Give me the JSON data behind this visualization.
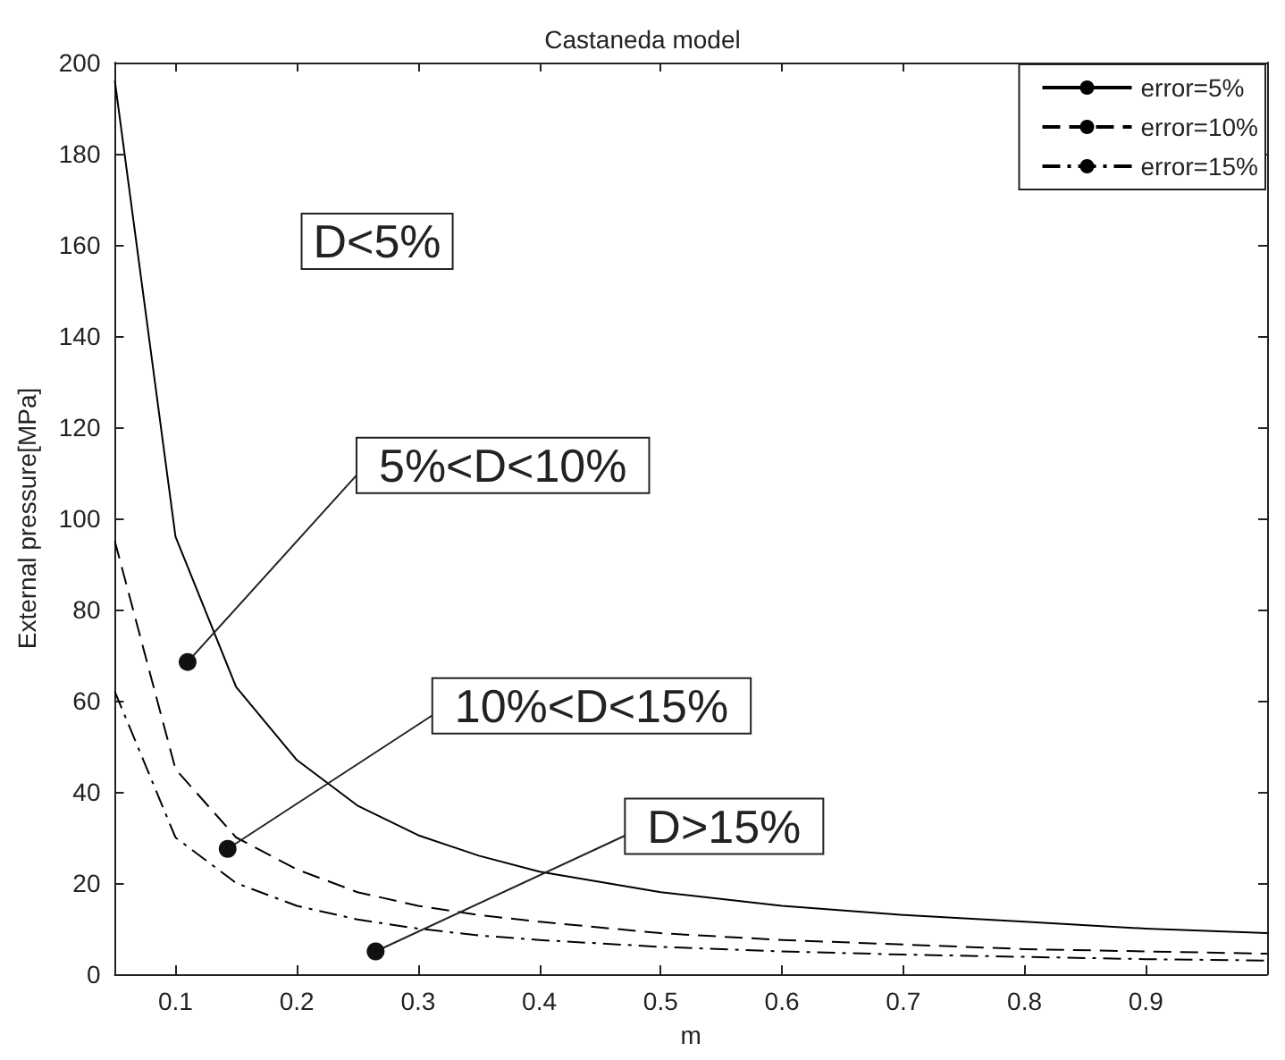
{
  "chart_data": {
    "type": "line",
    "title": "Castaneda model",
    "xlabel": "m",
    "ylabel": "External pressure[MPa]",
    "x": [
      0.05,
      0.1,
      0.15,
      0.2,
      0.25,
      0.3,
      0.35,
      0.4,
      0.5,
      0.6,
      0.7,
      0.8,
      0.9,
      1.0
    ],
    "series": [
      {
        "name": "error=5%",
        "color": "#000000",
        "line_style": "solid",
        "values": [
          196,
          96,
          63,
          47,
          37,
          30.5,
          26,
          22.5,
          18,
          15,
          13,
          11.5,
          10,
          9
        ]
      },
      {
        "name": "error=10%",
        "color": "#000000",
        "line_style": "dashed",
        "values": [
          95,
          45,
          30,
          23,
          18,
          15,
          13,
          11.5,
          9,
          7.5,
          6.5,
          5.5,
          5,
          4.5
        ]
      },
      {
        "name": "error=15%",
        "color": "#000000",
        "line_style": "dashdot",
        "values": [
          62,
          30,
          20,
          15,
          12,
          10,
          8.5,
          7.5,
          6,
          5,
          4.3,
          3.8,
          3.3,
          3
        ]
      }
    ],
    "annotations": [
      "D<5%",
      {
        "text": "5%<D<10%",
        "x": 0.11,
        "y": 68.5
      },
      {
        "text": "10%<D<15%",
        "x": 0.143,
        "y": 27.5
      },
      {
        "text": "D>15%",
        "x": 0.265,
        "y": 5
      }
    ],
    "xlim": [
      0.05,
      1.0
    ],
    "ylim": [
      0,
      200
    ],
    "xticks": [
      0.1,
      0.2,
      0.3,
      0.4,
      0.5,
      0.6,
      0.7,
      0.8,
      0.9
    ],
    "yticks": [
      0,
      20,
      40,
      60,
      80,
      100,
      120,
      140,
      160,
      180,
      200
    ],
    "grid": false,
    "legend": "top right",
    "marker": "none"
  }
}
